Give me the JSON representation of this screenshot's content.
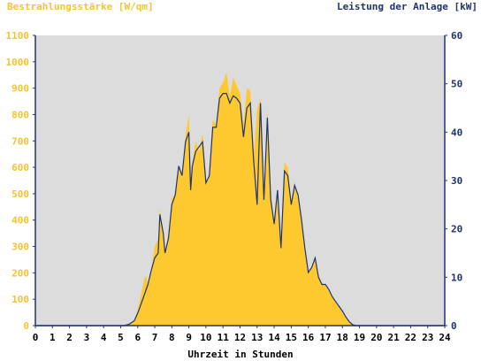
{
  "chart_data": {
    "type": "area",
    "ylabel_left": "Bestrahlungsstärke [W/qm]",
    "ylabel_right": "Leistung der Anlage [kW]",
    "xlabel": "Uhrzeit in Stunden",
    "x_ticks": [
      "0",
      "1",
      "2",
      "3",
      "4",
      "5",
      "6",
      "7",
      "8",
      "9",
      "10",
      "11",
      "12",
      "13",
      "14",
      "15",
      "16",
      "17",
      "18",
      "19",
      "20",
      "21",
      "22",
      "23",
      "24"
    ],
    "y_left_ticks": [
      "0",
      "100",
      "200",
      "300",
      "400",
      "500",
      "600",
      "700",
      "800",
      "900",
      "1000",
      "1100"
    ],
    "y_right_ticks": [
      "0",
      "10",
      "20",
      "30",
      "40",
      "50",
      "60"
    ],
    "y_left_lim": [
      0,
      1100
    ],
    "y_right_lim": [
      0,
      60
    ],
    "x_lim": [
      0,
      24
    ],
    "colors": {
      "background": "#dcdcdc",
      "irradiance": "#fec92e",
      "power": "#1f3370",
      "axis": "#1f3370"
    },
    "series": [
      {
        "name": "Bestrahlungsstärke [W/qm]",
        "axis": "left",
        "style": "area",
        "x": [
          0,
          5.2,
          5.5,
          5.8,
          6.0,
          6.2,
          6.4,
          6.5,
          6.6,
          6.8,
          7.0,
          7.2,
          7.3,
          7.5,
          7.6,
          7.8,
          8.0,
          8.2,
          8.4,
          8.6,
          8.8,
          9.0,
          9.1,
          9.2,
          9.4,
          9.6,
          9.8,
          10.0,
          10.2,
          10.4,
          10.6,
          10.8,
          11.0,
          11.2,
          11.4,
          11.6,
          11.8,
          12.0,
          12.2,
          12.4,
          12.6,
          12.8,
          13.0,
          13.2,
          13.4,
          13.6,
          13.8,
          14.0,
          14.2,
          14.4,
          14.6,
          14.8,
          15.0,
          15.2,
          15.4,
          15.6,
          15.8,
          16.0,
          16.2,
          16.4,
          16.6,
          16.8,
          17.0,
          17.2,
          17.4,
          17.6,
          17.8,
          18.0,
          18.2,
          18.4,
          18.6,
          18.8,
          19.0,
          19.2,
          19.4,
          19.6,
          19.8,
          20.0,
          24
        ],
        "values": [
          0,
          0,
          5,
          20,
          60,
          120,
          180,
          190,
          150,
          220,
          300,
          330,
          440,
          360,
          280,
          350,
          480,
          500,
          600,
          560,
          720,
          800,
          520,
          620,
          700,
          660,
          730,
          540,
          580,
          780,
          760,
          900,
          920,
          960,
          870,
          940,
          910,
          880,
          760,
          900,
          890,
          640,
          820,
          860,
          480,
          820,
          500,
          390,
          520,
          290,
          620,
          600,
          470,
          540,
          480,
          400,
          280,
          200,
          220,
          260,
          190,
          160,
          150,
          130,
          110,
          90,
          70,
          50,
          30,
          15,
          5,
          0,
          0,
          0,
          0,
          0,
          0,
          0,
          0
        ]
      },
      {
        "name": "Leistung der Anlage [kW]",
        "axis": "right",
        "style": "line",
        "x": [
          0,
          5.2,
          5.5,
          5.8,
          6.0,
          6.2,
          6.4,
          6.5,
          6.6,
          6.8,
          7.0,
          7.2,
          7.3,
          7.5,
          7.6,
          7.8,
          8.0,
          8.2,
          8.4,
          8.6,
          8.8,
          9.0,
          9.1,
          9.2,
          9.4,
          9.6,
          9.8,
          10.0,
          10.2,
          10.4,
          10.6,
          10.8,
          11.0,
          11.2,
          11.4,
          11.6,
          11.8,
          12.0,
          12.2,
          12.4,
          12.6,
          12.8,
          13.0,
          13.2,
          13.4,
          13.6,
          13.8,
          14.0,
          14.2,
          14.4,
          14.6,
          14.8,
          15.0,
          15.2,
          15.4,
          15.6,
          15.8,
          16.0,
          16.2,
          16.4,
          16.6,
          16.8,
          17.0,
          17.2,
          17.4,
          17.6,
          17.8,
          18.0,
          18.2,
          18.4,
          18.6,
          18.8,
          19.0,
          19.2,
          19.4,
          19.6,
          19.8,
          20.0,
          24
        ],
        "values": [
          0,
          0,
          0.3,
          1.0,
          2.6,
          4.5,
          6.5,
          7.5,
          8.5,
          11.5,
          14.0,
          15.0,
          23.0,
          19.0,
          15.0,
          18.0,
          25.0,
          27.0,
          33.0,
          31.0,
          38.0,
          40.0,
          28.0,
          33.0,
          36.0,
          37.0,
          38.0,
          29.5,
          31.0,
          41.0,
          41.0,
          47.0,
          48.0,
          48.0,
          46.0,
          47.5,
          47.0,
          46.0,
          39.0,
          45.0,
          46.0,
          34.0,
          25.0,
          46.0,
          26.0,
          43.0,
          26.0,
          21.0,
          28.0,
          16.0,
          32.0,
          31.0,
          25.0,
          29.0,
          27.0,
          22.0,
          16.0,
          11.0,
          12.0,
          14.0,
          10.0,
          8.5,
          8.5,
          7.5,
          6.0,
          5.0,
          4.0,
          3.0,
          1.8,
          0.8,
          0.2,
          0,
          0,
          0,
          0,
          0,
          0,
          0,
          0
        ]
      }
    ]
  }
}
